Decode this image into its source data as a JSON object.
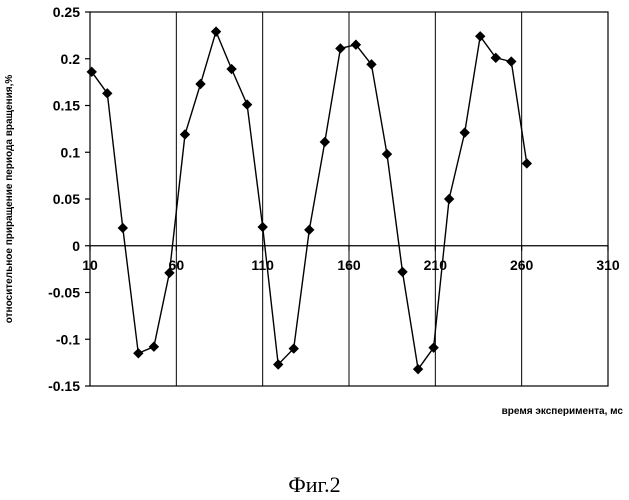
{
  "chart_data": {
    "type": "line",
    "xlabel": "время эксперимента, мс",
    "ylabel": "относительное приращение периода вращения,%",
    "xlim": [
      10,
      310
    ],
    "ylim": [
      -0.15,
      0.25
    ],
    "x_ticks": [
      10,
      60,
      110,
      160,
      210,
      260,
      310
    ],
    "y_ticks": [
      0.25,
      0.2,
      0.15,
      0.1,
      0.05,
      0,
      -0.05,
      -0.1,
      -0.15
    ],
    "y_tick_labels": [
      "0.25",
      "0.2",
      "0.15",
      "0.1",
      "0.05",
      "0",
      "-0.05",
      "-0.1",
      "-0.15"
    ],
    "grid": "vertical",
    "legend": "none",
    "marker": "diamond",
    "series": [
      {
        "points": [
          [
            11,
            0.186
          ],
          [
            20,
            0.163
          ],
          [
            29,
            0.019
          ],
          [
            38,
            -0.115
          ],
          [
            47,
            -0.108
          ],
          [
            56,
            -0.029
          ],
          [
            65,
            0.119
          ],
          [
            74,
            0.173
          ],
          [
            83,
            0.229
          ],
          [
            92,
            0.189
          ],
          [
            101,
            0.151
          ],
          [
            110,
            0.02
          ],
          [
            119,
            -0.127
          ],
          [
            128,
            -0.11
          ],
          [
            137,
            0.017
          ],
          [
            146,
            0.111
          ],
          [
            155,
            0.211
          ],
          [
            164,
            0.215
          ],
          [
            173,
            0.194
          ],
          [
            182,
            0.098
          ],
          [
            191,
            -0.028
          ],
          [
            200,
            -0.132
          ],
          [
            209,
            -0.109
          ],
          [
            218,
            0.05
          ],
          [
            227,
            0.121
          ],
          [
            236,
            0.224
          ],
          [
            245,
            0.201
          ],
          [
            254,
            0.197
          ],
          [
            263,
            0.088
          ]
        ]
      }
    ]
  },
  "caption": "Фиг.2"
}
